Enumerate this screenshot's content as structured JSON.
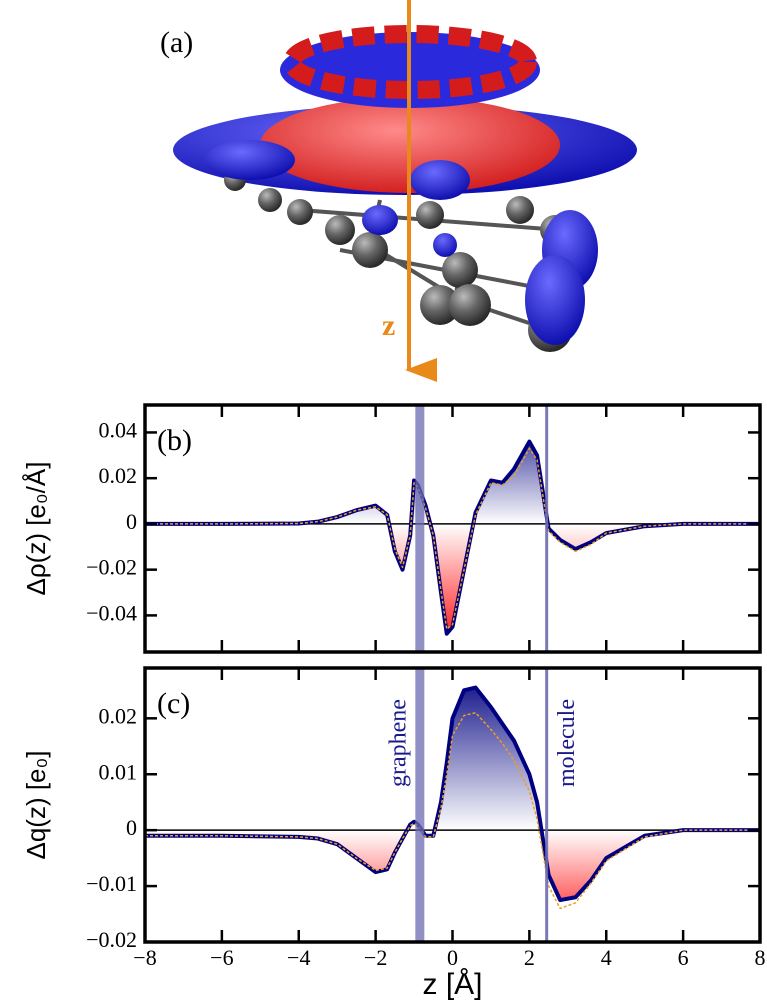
{
  "panel_a": {
    "label": "(a)",
    "axis_label": "z"
  },
  "chart_data": [
    {
      "type": "line",
      "panel_label": "(b)",
      "y_label": "Δρ(z) [e₀/Å]",
      "x": [
        -8,
        -6,
        -4,
        -3.5,
        -3,
        -2.5,
        -2,
        -1.7,
        -1.5,
        -1.3,
        -1.1,
        -1,
        -0.9,
        -0.7,
        -0.5,
        -0.3,
        -0.15,
        0,
        0.3,
        0.6,
        1,
        1.3,
        1.6,
        2,
        2.2,
        2.5,
        2.8,
        3.2,
        3.6,
        4,
        5,
        6,
        8
      ],
      "series": [
        {
          "color": "#000080",
          "values": [
            0,
            0,
            0.0002,
            0.001,
            0.003,
            0.006,
            0.008,
            0.004,
            -0.012,
            -0.02,
            -0.005,
            0.019,
            0.017,
            0.008,
            -0.005,
            -0.03,
            -0.048,
            -0.045,
            -0.02,
            0.005,
            0.019,
            0.018,
            0.024,
            0.036,
            0.03,
            -0.002,
            -0.007,
            -0.011,
            -0.008,
            -0.004,
            -0.001,
            0,
            0
          ]
        },
        {
          "color": "#e8a020",
          "values": [
            0,
            0,
            0.0002,
            0.001,
            0.003,
            0.006,
            0.0075,
            0.004,
            -0.011,
            -0.019,
            -0.005,
            0.018,
            0.016,
            0.007,
            -0.005,
            -0.029,
            -0.046,
            -0.044,
            -0.02,
            0.004,
            0.018,
            0.017,
            0.021,
            0.033,
            0.028,
            -0.003,
            -0.008,
            -0.012,
            -0.009,
            -0.004,
            -0.001,
            0,
            0
          ]
        }
      ],
      "fill": true,
      "xlim": [
        -8,
        8
      ],
      "xticks": [
        -8,
        -6,
        -4,
        -2,
        0,
        2,
        4,
        6,
        8
      ],
      "ylim": [
        -0.056,
        0.052
      ],
      "yticks": [
        {
          "value": -0.04,
          "label": "−0.04"
        },
        {
          "value": -0.02,
          "label": "−0.02"
        },
        0,
        0.02,
        0.04
      ],
      "markers": [
        {
          "x": -0.85
        },
        {
          "x": 2.45
        }
      ]
    },
    {
      "type": "line",
      "panel_label": "(c)",
      "y_label": "Δq(z) [e₀]",
      "x_label": "z [Å]",
      "x": [
        -8,
        -6,
        -4,
        -3.5,
        -3,
        -2.5,
        -2,
        -1.7,
        -1.5,
        -1.3,
        -1.1,
        -1,
        -0.9,
        -0.7,
        -0.5,
        -0.3,
        -0.15,
        0,
        0.3,
        0.6,
        1,
        1.3,
        1.6,
        2,
        2.2,
        2.5,
        2.8,
        3.2,
        3.6,
        4,
        5,
        6,
        8
      ],
      "series": [
        {
          "color": "#000080",
          "values": [
            -0.001,
            -0.001,
            -0.0012,
            -0.0015,
            -0.0025,
            -0.005,
            -0.0075,
            -0.007,
            -0.004,
            -0.0015,
            0.001,
            0.0015,
            0.001,
            -0.001,
            -0.001,
            0.005,
            0.012,
            0.02,
            0.025,
            0.0255,
            0.022,
            0.019,
            0.016,
            0.01,
            0.005,
            -0.008,
            -0.0125,
            -0.012,
            -0.009,
            -0.005,
            -0.001,
            0,
            0
          ]
        },
        {
          "color": "#e8a020",
          "values": [
            -0.001,
            -0.001,
            -0.0012,
            -0.0015,
            -0.0025,
            -0.005,
            -0.0072,
            -0.0068,
            -0.004,
            -0.0015,
            0.0008,
            0.0012,
            0.0008,
            -0.0012,
            -0.0012,
            0.004,
            0.01,
            0.017,
            0.0205,
            0.021,
            0.018,
            0.0155,
            0.0125,
            0.007,
            0.002,
            -0.01,
            -0.014,
            -0.013,
            -0.0095,
            -0.0055,
            -0.0012,
            0,
            0
          ]
        }
      ],
      "fill": true,
      "xlim": [
        -8,
        8
      ],
      "xticks": [
        {
          "value": -8,
          "label": "−8"
        },
        {
          "value": -6,
          "label": "−6"
        },
        {
          "value": -4,
          "label": "−4"
        },
        {
          "value": -2,
          "label": "−2"
        },
        0,
        2,
        4,
        6,
        8
      ],
      "ylim": [
        -0.02,
        0.029
      ],
      "yticks": [
        {
          "value": -0.02,
          "label": "−0.02"
        },
        {
          "value": -0.01,
          "label": "−0.01"
        },
        0,
        0.01,
        0.02
      ],
      "markers": [
        {
          "x": -0.85,
          "label": "graphene"
        },
        {
          "x": 2.45,
          "label": "molecule"
        }
      ]
    }
  ]
}
